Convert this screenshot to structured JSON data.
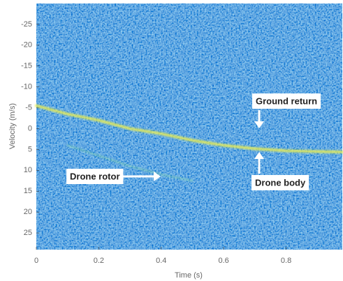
{
  "chart_data": {
    "type": "line",
    "xlabel": "Time (s)",
    "ylabel": "Velocity (m/s)",
    "xlim": [
      0,
      0.98
    ],
    "ylim": [
      -30,
      29
    ],
    "xticks": [
      0,
      0.2,
      0.4,
      0.6,
      0.8
    ],
    "yticks": [
      -25,
      -20,
      -15,
      -10,
      -5,
      0,
      5,
      10,
      15,
      20,
      25
    ],
    "y_reversed": true,
    "series": [
      {
        "name": "Ground return",
        "color": "#f0f05a",
        "x": [
          0,
          0.98
        ],
        "values": [
          0,
          0
        ]
      },
      {
        "name": "Drone body",
        "color": "#e6ec58",
        "x": [
          0,
          0.1,
          0.2,
          0.3,
          0.4,
          0.5,
          0.6,
          0.7,
          0.8,
          0.9,
          0.98
        ],
        "values": [
          -5.5,
          -3.5,
          -2,
          0,
          1.2,
          2.8,
          4,
          4.8,
          5.3,
          5.5,
          5.6
        ]
      },
      {
        "name": "Drone rotor",
        "color": "#8fe0a0",
        "x": [
          0.1,
          0.2,
          0.3,
          0.4,
          0.5
        ],
        "values": [
          4,
          6.5,
          9,
          11,
          12.5
        ]
      }
    ]
  }
}
